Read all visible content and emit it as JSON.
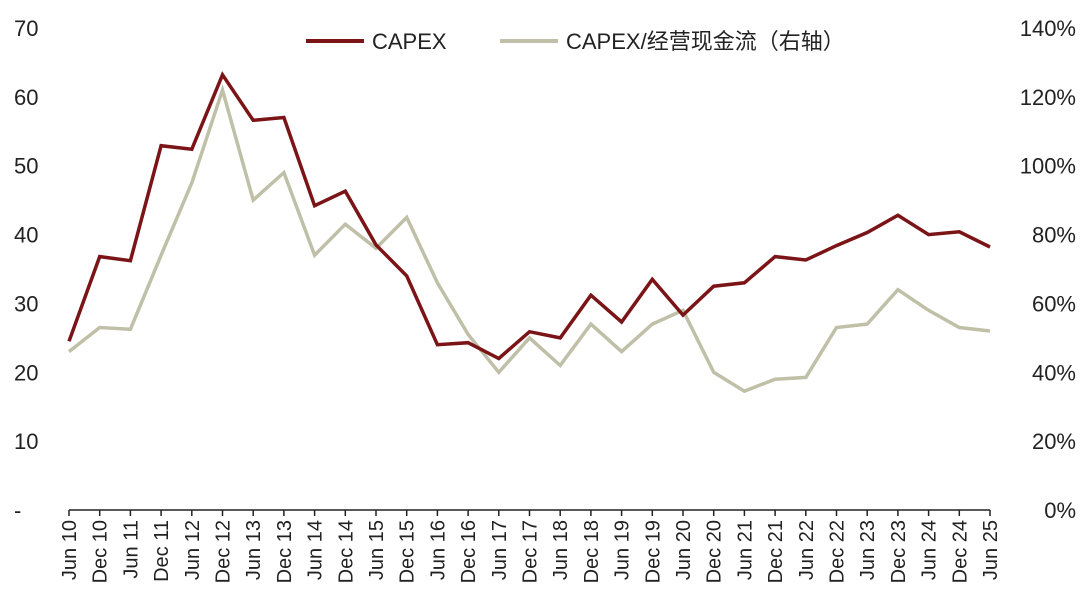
{
  "chart_data": {
    "type": "line",
    "x": [
      "Jun 10",
      "Dec 10",
      "Jun 11",
      "Dec 11",
      "Jun 12",
      "Dec 12",
      "Jun 13",
      "Dec 13",
      "Jun 14",
      "Dec 14",
      "Jun 15",
      "Dec 15",
      "Jun 16",
      "Dec 16",
      "Jun 17",
      "Dec 17",
      "Jun 18",
      "Dec 18",
      "Jun 19",
      "Dec 19",
      "Jun 20",
      "Dec 20",
      "Jun 21",
      "Dec 21",
      "Jun 22",
      "Dec 22",
      "Jun 23",
      "Dec 23",
      "Jun 24",
      "Dec 24",
      "Jun 25"
    ],
    "series": [
      {
        "name": "CAPEX",
        "axis": "left",
        "color": "#7B1416",
        "values": [
          24.5,
          36.8,
          36.2,
          52.9,
          52.4,
          63.2,
          56.6,
          57.0,
          44.2,
          46.3,
          38.5,
          34.0,
          24.0,
          24.3,
          22.0,
          25.9,
          25.0,
          31.2,
          27.3,
          33.5,
          28.3,
          32.5,
          33.0,
          36.8,
          36.3,
          38.4,
          40.3,
          42.8,
          40.0,
          40.4,
          38.2
        ]
      },
      {
        "name": "CAPEX/经营现金流（右轴）",
        "axis": "right",
        "color": "#C0C0A8",
        "values": [
          0.46,
          0.53,
          0.525,
          0.74,
          0.95,
          1.22,
          0.9,
          0.98,
          0.74,
          0.83,
          0.76,
          0.85,
          0.66,
          0.51,
          0.4,
          0.5,
          0.42,
          0.54,
          0.46,
          0.54,
          0.58,
          0.4,
          0.345,
          0.38,
          0.385,
          0.53,
          0.54,
          0.64,
          0.58,
          0.53,
          0.52
        ]
      }
    ],
    "y_left": {
      "ylim": [
        0,
        70
      ],
      "ticks": [
        0,
        10,
        20,
        30,
        40,
        50,
        60,
        70
      ],
      "tick_labels": [
        "-",
        "10",
        "20",
        "30",
        "40",
        "50",
        "60",
        "70"
      ]
    },
    "y_right": {
      "ylim": [
        0,
        1.4
      ],
      "ticks": [
        0,
        0.2,
        0.4,
        0.6,
        0.8,
        1.0,
        1.2,
        1.4
      ],
      "tick_labels": [
        "0%",
        "20%",
        "40%",
        "60%",
        "80%",
        "100%",
        "120%",
        "140%"
      ]
    },
    "title": "",
    "xlabel": "",
    "ylabel": "",
    "grid": false,
    "legend": {
      "position": "top-center",
      "entries": [
        "CAPEX",
        "CAPEX/经营现金流（右轴）"
      ]
    }
  }
}
